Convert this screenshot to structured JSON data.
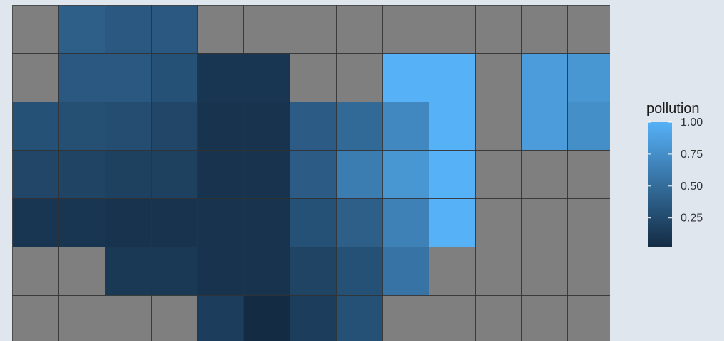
{
  "chart_data": {
    "type": "heatmap",
    "title": "",
    "xlabel": "",
    "ylabel": "",
    "rows": 7,
    "cols": 13,
    "values": [
      [
        null,
        0.4,
        0.35,
        0.35,
        null,
        null,
        null,
        null,
        null,
        null,
        null,
        null,
        null
      ],
      [
        null,
        0.35,
        0.35,
        0.3,
        0.1,
        0.1,
        null,
        null,
        1.0,
        1.0,
        null,
        0.85,
        0.8
      ],
      [
        0.3,
        0.28,
        0.27,
        0.22,
        0.08,
        0.08,
        0.38,
        0.48,
        0.7,
        1.0,
        null,
        0.85,
        0.75
      ],
      [
        0.22,
        0.2,
        0.18,
        0.18,
        0.08,
        0.08,
        0.38,
        0.62,
        0.8,
        1.0,
        null,
        null,
        null
      ],
      [
        0.1,
        0.1,
        0.08,
        0.08,
        0.08,
        0.08,
        0.3,
        0.4,
        0.65,
        1.0,
        null,
        null,
        null
      ],
      [
        null,
        null,
        0.12,
        0.12,
        0.08,
        0.08,
        0.2,
        0.3,
        0.55,
        null,
        null,
        null,
        null
      ],
      [
        null,
        null,
        null,
        null,
        0.15,
        0.02,
        0.15,
        0.3,
        null,
        null,
        null,
        null,
        null
      ]
    ],
    "na_color": "#7f7f7f",
    "cell_border_color": "#333333",
    "color_scale": {
      "low": "#132b43",
      "high": "#56b1f7",
      "min": 0.02,
      "max": 1.0
    },
    "legend": {
      "title": "pollution",
      "placement": "right",
      "ticks": [
        1.0,
        0.75,
        0.5,
        0.25
      ],
      "tick_labels": [
        "1.00",
        "0.75",
        "0.50",
        "0.25"
      ]
    }
  }
}
